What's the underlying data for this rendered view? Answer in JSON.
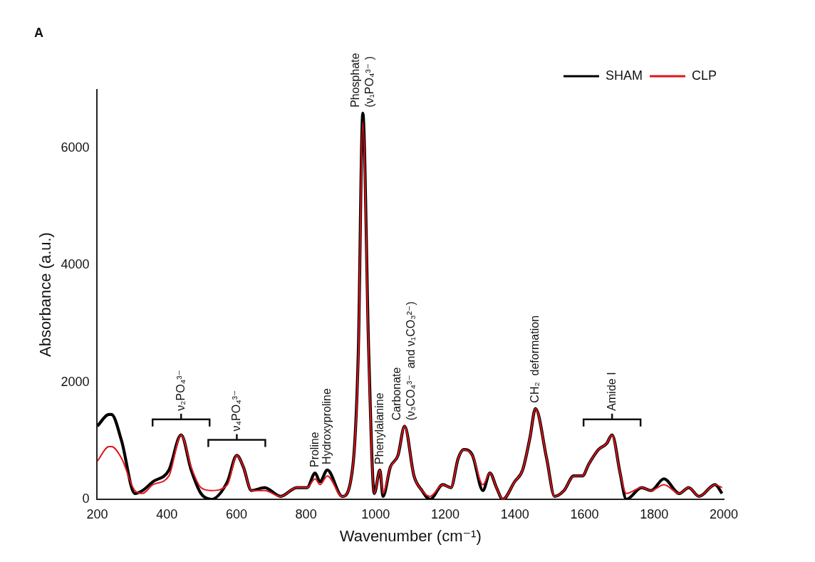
{
  "chart_data": {
    "type": "line",
    "xlabel": "Wavenumber (cm⁻¹)",
    "ylabel": "Absorbance (a.u.)",
    "x": [
      200,
      234,
      241,
      270,
      308,
      330,
      360,
      406,
      441,
      470,
      498,
      528,
      574,
      601,
      620,
      643,
      681,
      727,
      773,
      803,
      826,
      840,
      861,
      904,
      934,
      950,
      963,
      980,
      996,
      1012,
      1021,
      1042,
      1064,
      1083,
      1110,
      1133,
      1156,
      1193,
      1216,
      1237,
      1253,
      1278,
      1308,
      1328,
      1347,
      1365,
      1399,
      1422,
      1443,
      1459,
      1491,
      1514,
      1541,
      1569,
      1594,
      1612,
      1640,
      1663,
      1679,
      1702,
      1720,
      1764,
      1791,
      1828,
      1872,
      1899,
      1929,
      1975,
      1995
    ],
    "series": [
      {
        "name": "SHAM",
        "color": "#000000",
        "values": [
          1250,
          1450,
          1450,
          1000,
          100,
          150,
          300,
          500,
          1100,
          500,
          100,
          0,
          300,
          750,
          550,
          150,
          200,
          50,
          200,
          200,
          450,
          300,
          500,
          50,
          550,
          2500,
          6600,
          2500,
          100,
          500,
          50,
          550,
          750,
          1250,
          400,
          150,
          0,
          250,
          200,
          700,
          850,
          750,
          150,
          450,
          200,
          0,
          300,
          500,
          1050,
          1550,
          700,
          50,
          150,
          400,
          400,
          600,
          850,
          950,
          1100,
          450,
          0,
          200,
          150,
          350,
          100,
          200,
          50,
          250,
          100
        ]
      },
      {
        "name": "CLP",
        "color": "#e3141b",
        "values": [
          650,
          900,
          900,
          700,
          150,
          100,
          250,
          400,
          1100,
          550,
          200,
          150,
          250,
          750,
          550,
          150,
          150,
          50,
          200,
          200,
          350,
          250,
          400,
          50,
          550,
          2400,
          6450,
          2400,
          100,
          500,
          100,
          550,
          750,
          1250,
          400,
          150,
          50,
          250,
          200,
          700,
          850,
          750,
          250,
          450,
          200,
          0,
          300,
          500,
          1050,
          1550,
          700,
          50,
          150,
          400,
          400,
          600,
          850,
          950,
          1100,
          450,
          100,
          200,
          150,
          250,
          100,
          200,
          50,
          250,
          200
        ]
      }
    ],
    "xlim": [
      200,
      2000
    ],
    "xticks": [
      200,
      400,
      600,
      800,
      1000,
      1200,
      1400,
      1600,
      1800,
      2000
    ],
    "ylim": [
      0,
      7000
    ],
    "yticks": [
      0,
      2000,
      4000,
      6000
    ],
    "legend": "top right",
    "grid": false,
    "marker": "none",
    "line_style": "solid",
    "annotations": [
      "A",
      {
        "text": "ν₂PO₄³⁻",
        "x": 441,
        "y": 1100
      },
      {
        "text": "ν₄PO₄³⁻",
        "x": 601,
        "y": 750
      },
      {
        "text": "Proline",
        "x": 826,
        "y": 450
      },
      {
        "text": "Hydroxyproline",
        "x": 861,
        "y": 500
      },
      {
        "text": "Phosphate\n(ν₁PO₄³⁻ )",
        "x": 963,
        "y": 6600
      },
      {
        "text": "Phenylalanine",
        "x": 1012,
        "y": 500
      },
      {
        "text": "Carbonate\n(ν₃CO₄³⁻  and ν₁CO₃²⁻)",
        "x": 1083,
        "y": 1250
      },
      {
        "text": "CH₂  deformation",
        "x": 1459,
        "y": 1550
      },
      {
        "text": "Amide I",
        "x": 1679,
        "y": 1100
      }
    ]
  }
}
